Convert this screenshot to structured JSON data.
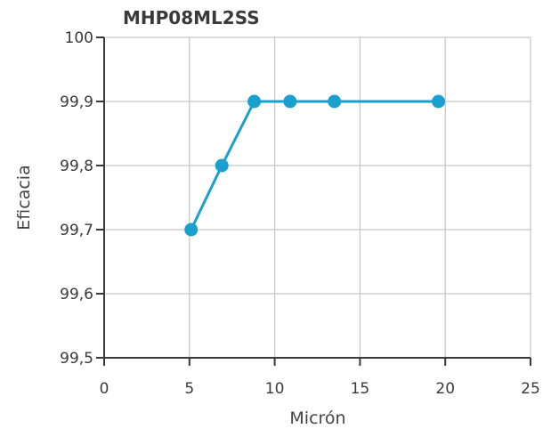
{
  "chart_data": {
    "type": "line",
    "title": "MHP08ML2SS",
    "xlabel": "Micrón",
    "ylabel": "Eficacia",
    "xlim": [
      0,
      25
    ],
    "ylim": [
      99.5,
      100
    ],
    "x_ticks": [
      0,
      5,
      10,
      15,
      20,
      25
    ],
    "x_tick_labels": [
      "0",
      "5",
      "10",
      "15",
      "20",
      "25"
    ],
    "y_ticks": [
      99.5,
      99.6,
      99.7,
      99.8,
      99.9,
      100
    ],
    "y_tick_labels": [
      "99,5",
      "99,6",
      "99,7",
      "99,8",
      "99,9",
      "100"
    ],
    "grid": true,
    "series": [
      {
        "x": [
          5.1,
          6.9,
          8.8,
          10.9,
          13.5,
          19.6
        ],
        "y": [
          99.7,
          99.8,
          99.9,
          99.9,
          99.9,
          99.9
        ]
      }
    ],
    "colors": {
      "line": "#1aa0cf",
      "marker": "#1aa0cf",
      "grid": "#c8c8c8",
      "axis": "#3a3a3a"
    }
  }
}
